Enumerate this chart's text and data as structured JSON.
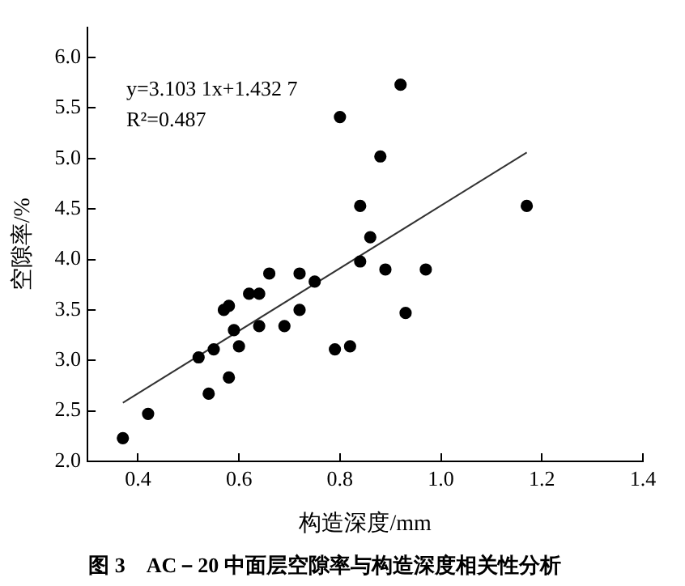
{
  "chart_data": {
    "type": "scatter",
    "title": "图 3　AC－20 中面层空隙率与构造深度相关性分析",
    "xlabel": "构造深度/mm",
    "ylabel": "空隙率/%",
    "annotations": [
      "y=3.103 1x+1.432 7",
      "R²=0.487"
    ],
    "marker": "circle",
    "grid": false,
    "legend": false,
    "xlim": [
      0.3,
      1.4
    ],
    "ylim": [
      2.0,
      6.3
    ],
    "xticks": [
      {
        "value": 0.4,
        "label": "0.4"
      },
      {
        "value": 0.6,
        "label": "0.6"
      },
      {
        "value": 0.8,
        "label": "0.8"
      },
      {
        "value": 1.0,
        "label": "1.0"
      },
      {
        "value": 1.2,
        "label": "1.2"
      },
      {
        "value": 1.4,
        "label": "1.4"
      }
    ],
    "yticks": [
      {
        "value": 2.0,
        "label": "2.0"
      },
      {
        "value": 2.5,
        "label": "2.5"
      },
      {
        "value": 3.0,
        "label": "3.0"
      },
      {
        "value": 3.5,
        "label": "3.5"
      },
      {
        "value": 4.0,
        "label": "4.0"
      },
      {
        "value": 4.5,
        "label": "4.5"
      },
      {
        "value": 5.0,
        "label": "5.0"
      },
      {
        "value": 5.5,
        "label": "5.5"
      },
      {
        "value": 6.0,
        "label": "6.0"
      }
    ],
    "series": [
      {
        "color": "#000000",
        "x": [
          0.37,
          0.42,
          0.52,
          0.54,
          0.55,
          0.57,
          0.58,
          0.58,
          0.59,
          0.6,
          0.62,
          0.64,
          0.64,
          0.66,
          0.69,
          0.72,
          0.72,
          0.75,
          0.79,
          0.82,
          0.84,
          0.89,
          0.93,
          0.97,
          0.8,
          0.92,
          0.88,
          0.84,
          0.86,
          1.17
        ],
        "values": [
          2.23,
          2.47,
          3.03,
          2.67,
          3.11,
          3.5,
          3.54,
          2.83,
          3.3,
          3.14,
          3.66,
          3.66,
          3.34,
          3.86,
          3.34,
          3.86,
          3.5,
          3.78,
          3.11,
          3.14,
          3.98,
          3.9,
          3.47,
          3.9,
          5.41,
          5.73,
          5.02,
          4.53,
          4.22,
          4.53
        ]
      },
      {
        "type": "line",
        "color": "#333333",
        "marker": "none",
        "x": [
          0.37,
          1.17
        ],
        "values": [
          2.58,
          5.06
        ]
      }
    ]
  }
}
